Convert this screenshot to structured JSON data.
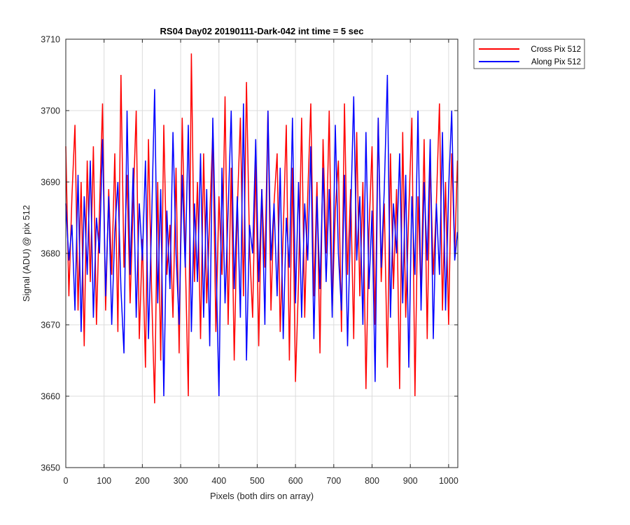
{
  "chart_data": {
    "type": "line",
    "title": "RS04 Day02 20190111-Dark-042 int time = 5 sec",
    "xlabel": "Pixels (both dirs on array)",
    "ylabel": "Signal (ADU) @ pix 512",
    "xlim": [
      0,
      1024
    ],
    "ylim": [
      3650,
      3710
    ],
    "xticks": [
      0,
      100,
      200,
      300,
      400,
      500,
      600,
      700,
      800,
      900,
      1000
    ],
    "yticks": [
      3650,
      3660,
      3670,
      3680,
      3690,
      3700,
      3710
    ],
    "grid": true,
    "legend_position": "outside top-right",
    "series": [
      {
        "name": "Cross Pix 512",
        "color": "#ff0000",
        "sampling": "every 8 pixels (approximate reading of dense noise trace)",
        "x": [
          0,
          8,
          16,
          24,
          32,
          40,
          48,
          56,
          64,
          72,
          80,
          88,
          96,
          104,
          112,
          120,
          128,
          136,
          144,
          152,
          160,
          168,
          176,
          184,
          192,
          200,
          208,
          216,
          224,
          232,
          240,
          248,
          256,
          264,
          272,
          280,
          288,
          296,
          304,
          312,
          320,
          328,
          336,
          344,
          352,
          360,
          368,
          376,
          384,
          392,
          400,
          408,
          416,
          424,
          432,
          440,
          448,
          456,
          464,
          472,
          480,
          488,
          496,
          504,
          512,
          520,
          528,
          536,
          544,
          552,
          560,
          568,
          576,
          584,
          592,
          600,
          608,
          616,
          624,
          632,
          640,
          648,
          656,
          664,
          672,
          680,
          688,
          696,
          704,
          712,
          720,
          728,
          736,
          744,
          752,
          760,
          768,
          776,
          784,
          792,
          800,
          808,
          816,
          824,
          832,
          840,
          848,
          856,
          864,
          872,
          880,
          888,
          896,
          904,
          912,
          920,
          928,
          936,
          944,
          952,
          960,
          968,
          976,
          984,
          992,
          1000,
          1008,
          1016,
          1023
        ],
        "values": [
          3695,
          3674,
          3688,
          3698,
          3672,
          3690,
          3667,
          3693,
          3676,
          3695,
          3670,
          3686,
          3701,
          3672,
          3689,
          3677,
          3694,
          3669,
          3705,
          3678,
          3691,
          3673,
          3687,
          3700,
          3668,
          3682,
          3664,
          3696,
          3675,
          3659,
          3690,
          3665,
          3698,
          3677,
          3684,
          3671,
          3692,
          3666,
          3699,
          3680,
          3660,
          3708,
          3676,
          3690,
          3668,
          3694,
          3673,
          3685,
          3697,
          3669,
          3688,
          3677,
          3702,
          3670,
          3692,
          3665,
          3686,
          3699,
          3674,
          3704,
          3681,
          3671,
          3693,
          3667,
          3689,
          3678,
          3700,
          3672,
          3687,
          3694,
          3669,
          3683,
          3698,
          3665,
          3692,
          3662,
          3676,
          3699,
          3671,
          3688,
          3701,
          3674,
          3690,
          3666,
          3696,
          3680,
          3700,
          3672,
          3686,
          3693,
          3669,
          3701,
          3677,
          3689,
          3668,
          3697,
          3674,
          3690,
          3661,
          3683,
          3695,
          3670,
          3699,
          3676,
          3687,
          3664,
          3694,
          3675,
          3689,
          3661,
          3697,
          3671,
          3686,
          3699,
          3660,
          3688,
          3674,
          3696,
          3668,
          3693,
          3677,
          3687,
          3701,
          3672,
          3690,
          3670,
          3694,
          3680,
          3693
        ]
      },
      {
        "name": "Along Pix 512",
        "color": "#0000ff",
        "sampling": "every 8 pixels (approximate reading of dense noise trace)",
        "x": [
          0,
          8,
          16,
          24,
          32,
          40,
          48,
          56,
          64,
          72,
          80,
          88,
          96,
          104,
          112,
          120,
          128,
          136,
          144,
          152,
          160,
          168,
          176,
          184,
          192,
          200,
          208,
          216,
          224,
          232,
          240,
          248,
          256,
          264,
          272,
          280,
          288,
          296,
          304,
          312,
          320,
          328,
          336,
          344,
          352,
          360,
          368,
          376,
          384,
          392,
          400,
          408,
          416,
          424,
          432,
          440,
          448,
          456,
          464,
          472,
          480,
          488,
          496,
          504,
          512,
          520,
          528,
          536,
          544,
          552,
          560,
          568,
          576,
          584,
          592,
          600,
          608,
          616,
          624,
          632,
          640,
          648,
          656,
          664,
          672,
          680,
          688,
          696,
          704,
          712,
          720,
          728,
          736,
          744,
          752,
          760,
          768,
          776,
          784,
          792,
          800,
          808,
          816,
          824,
          832,
          840,
          848,
          856,
          864,
          872,
          880,
          888,
          896,
          904,
          912,
          920,
          928,
          936,
          944,
          952,
          960,
          968,
          976,
          984,
          992,
          1000,
          1008,
          1016,
          1023
        ],
        "values": [
          3687,
          3679,
          3684,
          3672,
          3691,
          3669,
          3688,
          3677,
          3693,
          3671,
          3685,
          3680,
          3696,
          3674,
          3688,
          3670,
          3683,
          3690,
          3675,
          3666,
          3700,
          3677,
          3692,
          3671,
          3687,
          3679,
          3693,
          3668,
          3684,
          3703,
          3673,
          3689,
          3660,
          3686,
          3675,
          3697,
          3680,
          3670,
          3691,
          3678,
          3698,
          3669,
          3687,
          3676,
          3694,
          3671,
          3689,
          3667,
          3699,
          3680,
          3660,
          3692,
          3673,
          3686,
          3700,
          3675,
          3688,
          3671,
          3701,
          3665,
          3684,
          3680,
          3696,
          3676,
          3689,
          3670,
          3700,
          3679,
          3687,
          3674,
          3692,
          3668,
          3685,
          3678,
          3699,
          3673,
          3690,
          3671,
          3687,
          3679,
          3695,
          3668,
          3688,
          3675,
          3692,
          3676,
          3689,
          3671,
          3698,
          3680,
          3672,
          3691,
          3667,
          3685,
          3702,
          3679,
          3688,
          3670,
          3697,
          3675,
          3686,
          3662,
          3699,
          3678,
          3689,
          3705,
          3671,
          3687,
          3680,
          3694,
          3673,
          3691,
          3664,
          3688,
          3677,
          3700,
          3672,
          3690,
          3679,
          3696,
          3668,
          3687,
          3677,
          3697,
          3672,
          3689,
          3700,
          3679,
          3683
        ]
      }
    ]
  }
}
